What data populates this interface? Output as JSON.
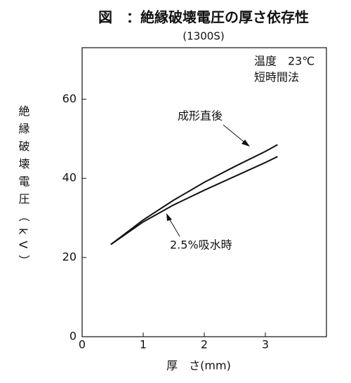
{
  "chart_data": {
    "type": "line",
    "title": "図　：絶縁破壊電圧の厚さ依存性",
    "subtitle": "(1300S)",
    "x_label": "厚　さ(mm)",
    "y_label": "絶縁破壊電圧（kV）",
    "annotations": [
      "温度　23℃",
      "短時間法"
    ],
    "xlim": [
      0,
      4
    ],
    "xticks": [
      0,
      1,
      2,
      3
    ],
    "ylim": [
      0,
      73
    ],
    "yticks": [
      0,
      20,
      40,
      60
    ],
    "grid": false,
    "series": [
      {
        "name": "成形直後",
        "color": "#111111",
        "x": [
          0.47,
          1,
          1.5,
          2,
          2.5,
          3,
          3.2
        ],
        "values": [
          23.3,
          29.5,
          34.5,
          39,
          43,
          46.8,
          48.5
        ]
      },
      {
        "name": "2.5%吸水時",
        "color": "#111111",
        "x": [
          0.47,
          1,
          1.5,
          2,
          2.5,
          3,
          3.2
        ],
        "values": [
          23.3,
          29,
          33.3,
          37,
          40.5,
          44,
          45.5
        ]
      }
    ]
  }
}
